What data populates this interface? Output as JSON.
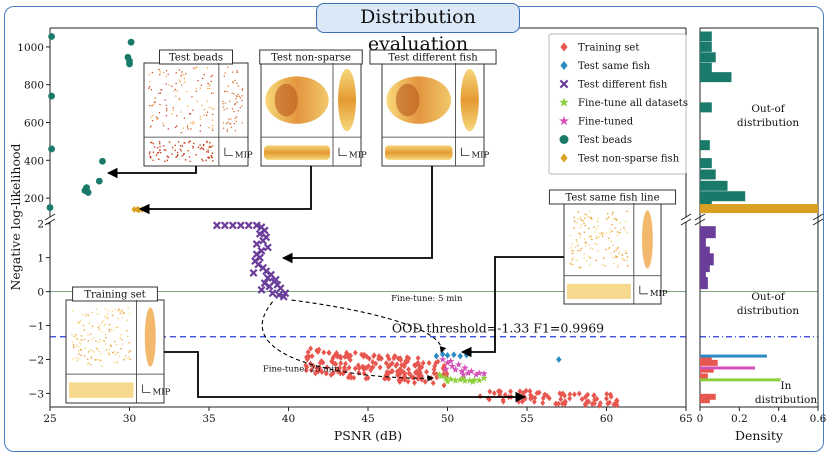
{
  "chart_data": {
    "type": "scatter",
    "title": "Distribution evaluation",
    "xlabel": "PSNR (dB)",
    "ylabel": "Negative log-likelihood",
    "xlim": [
      25,
      65
    ],
    "xticks": [
      25,
      30,
      35,
      40,
      45,
      50,
      55,
      60,
      65
    ],
    "upper_ylim": [
      100,
      1100
    ],
    "upper_yticks": [
      200,
      400,
      600,
      800,
      1000
    ],
    "lower_ylim": [
      -3.4,
      2.05
    ],
    "lower_yticks": [
      2,
      1,
      0,
      -1,
      -2,
      -3
    ],
    "threshold": {
      "value": -1.33,
      "label": "OOD threshold=-1.33 F1=0.9969"
    },
    "series": [
      {
        "name": "Training set",
        "color": "#e8574f",
        "marker": "diamond",
        "panel": "lower",
        "clusters": [
          {
            "x_range": [
              41,
              50
            ],
            "y_range": [
              -2.7,
              -1.75
            ],
            "n": 200
          },
          {
            "x_range": [
              52,
              61
            ],
            "y_range": [
              -3.35,
              -2.9
            ],
            "n": 80
          }
        ]
      },
      {
        "name": "Test same fish",
        "color": "#2b8cc4",
        "marker": "diamond",
        "panel": "lower",
        "points": [
          [
            49.3,
            -1.9
          ],
          [
            49.7,
            -1.85
          ],
          [
            50.0,
            -1.88
          ],
          [
            50.4,
            -1.86
          ],
          [
            50.8,
            -1.9
          ],
          [
            51.2,
            -1.87
          ],
          [
            57.0,
            -2.0
          ]
        ]
      },
      {
        "name": "Test different fish",
        "color": "#6a3d9a",
        "marker": "x",
        "panel": "lower",
        "points": [
          [
            35.5,
            1.95
          ],
          [
            36.0,
            1.95
          ],
          [
            36.5,
            1.95
          ],
          [
            37.0,
            1.95
          ],
          [
            37.5,
            1.95
          ],
          [
            38.0,
            1.95
          ],
          [
            38.3,
            1.9
          ],
          [
            38.5,
            1.8
          ],
          [
            38.2,
            1.7
          ],
          [
            38.6,
            1.6
          ],
          [
            38.4,
            1.5
          ],
          [
            38.0,
            1.4
          ],
          [
            38.7,
            1.3
          ],
          [
            38.3,
            1.2
          ],
          [
            38.0,
            1.1
          ],
          [
            38.2,
            1.0
          ],
          [
            37.9,
            0.9
          ],
          [
            38.1,
            0.8
          ],
          [
            38.4,
            0.7
          ],
          [
            38.6,
            0.6
          ],
          [
            38.9,
            0.5
          ],
          [
            38.7,
            0.4
          ],
          [
            39.1,
            0.3
          ],
          [
            39.3,
            0.2
          ],
          [
            39.5,
            0.1
          ],
          [
            38.8,
            0.15
          ],
          [
            39.0,
            -0.05
          ],
          [
            39.4,
            -0.1
          ],
          [
            39.7,
            -0.15
          ],
          [
            38.5,
            0.25
          ],
          [
            37.8,
            0.55
          ],
          [
            39.2,
            0.35
          ],
          [
            38.3,
            0.05
          ],
          [
            39.8,
            -0.05
          ]
        ]
      },
      {
        "name": "Fine-tune all datasets",
        "color": "#8ccf3b",
        "marker": "star",
        "panel": "lower",
        "points": [
          [
            49.6,
            -2.5
          ],
          [
            49.9,
            -2.55
          ],
          [
            50.2,
            -2.58
          ],
          [
            50.5,
            -2.62
          ],
          [
            50.8,
            -2.6
          ],
          [
            51.1,
            -2.63
          ],
          [
            51.4,
            -2.62
          ],
          [
            51.7,
            -2.6
          ],
          [
            52.0,
            -2.62
          ],
          [
            52.3,
            -2.55
          ],
          [
            49.5,
            -2.45
          ],
          [
            50.0,
            -2.65
          ],
          [
            51.0,
            -2.55
          ],
          [
            51.6,
            -2.66
          ]
        ]
      },
      {
        "name": "Fine-tuned",
        "color": "#d44fb8",
        "marker": "star",
        "panel": "lower",
        "points": [
          [
            49.7,
            -2.0
          ],
          [
            50.0,
            -2.1
          ],
          [
            50.3,
            -2.2
          ],
          [
            50.5,
            -2.3
          ],
          [
            50.7,
            -2.15
          ],
          [
            50.9,
            -2.35
          ],
          [
            51.1,
            -2.25
          ],
          [
            51.3,
            -2.4
          ],
          [
            51.5,
            -2.35
          ],
          [
            51.8,
            -2.45
          ],
          [
            52.0,
            -2.4
          ],
          [
            52.3,
            -2.42
          ],
          [
            50.2,
            -2.05
          ],
          [
            51.0,
            -2.45
          ],
          [
            49.9,
            -2.28
          ]
        ]
      },
      {
        "name": "Test beads",
        "color": "#1a7a6a",
        "marker": "circle",
        "panel": "upper",
        "points": [
          [
            25.1,
            1055
          ],
          [
            25.1,
            740
          ],
          [
            25.1,
            460
          ],
          [
            27.3,
            255
          ],
          [
            27.2,
            240
          ],
          [
            27.4,
            230
          ],
          [
            28.1,
            290
          ],
          [
            28.3,
            395
          ],
          [
            29.9,
            945
          ],
          [
            30.0,
            925
          ],
          [
            30.0,
            910
          ],
          [
            30.1,
            1025
          ],
          [
            25.0,
            150
          ]
        ]
      },
      {
        "name": "Test non-sparse fish",
        "color": "#d9a021",
        "marker": "diamond",
        "panel": "upper",
        "points": [
          [
            30.3,
            140
          ],
          [
            30.5,
            140
          ],
          [
            30.6,
            138
          ],
          [
            30.8,
            140
          ]
        ]
      }
    ],
    "insets": [
      "Test beads",
      "Test non-sparse",
      "Test different fish",
      "Test same fish line",
      "Training set"
    ],
    "inset_axis_label": "MIP",
    "annotations": [
      "Fine-tune: 5 min",
      "Fine-tune: 25 min"
    ],
    "density": {
      "xlabel": "Density",
      "xticks": [
        0,
        0.2,
        0.4,
        0.6
      ],
      "xlim": [
        0,
        0.6
      ],
      "upper_label": "Out-of distribution",
      "middle_label": "Out-of distribution",
      "lower_label": "In distribution",
      "upper_bins": [
        {
          "y": 1055,
          "v": 0.06
        },
        {
          "y": 1000,
          "v": 0.06
        },
        {
          "y": 945,
          "v": 0.08
        },
        {
          "y": 890,
          "v": 0.06
        },
        {
          "y": 840,
          "v": 0.16
        },
        {
          "y": 680,
          "v": 0.06
        },
        {
          "y": 480,
          "v": 0.05
        },
        {
          "y": 385,
          "v": 0.06
        },
        {
          "y": 325,
          "v": 0.08
        },
        {
          "y": 265,
          "v": 0.14
        },
        {
          "y": 210,
          "v": 0.23
        },
        {
          "y": 160,
          "v": 0.06
        }
      ],
      "upper_gold": {
        "y": 142,
        "v": 0.6
      },
      "lower_purple": [
        {
          "y": 1.75,
          "v": 0.08
        },
        {
          "y": 1.45,
          "v": 0.03
        },
        {
          "y": 1.15,
          "v": 0.05
        },
        {
          "y": 0.95,
          "v": 0.07
        },
        {
          "y": 0.75,
          "v": 0.05
        },
        {
          "y": 0.55,
          "v": 0.03
        },
        {
          "y": 0.25,
          "v": 0.04
        }
      ],
      "lower_blue": {
        "y": -1.9,
        "v": 0.34
      },
      "lower_pink": {
        "y": -2.25,
        "v": 0.28
      },
      "lower_green": {
        "y": -2.6,
        "v": 0.41
      },
      "lower_red": [
        {
          "y": -1.95,
          "v": 0.06
        },
        {
          "y": -2.1,
          "v": 0.09
        },
        {
          "y": -2.3,
          "v": 0.07
        },
        {
          "y": -2.5,
          "v": 0.04
        },
        {
          "y": -3.1,
          "v": 0.08
        },
        {
          "y": -3.2,
          "v": 0.05
        }
      ]
    }
  }
}
